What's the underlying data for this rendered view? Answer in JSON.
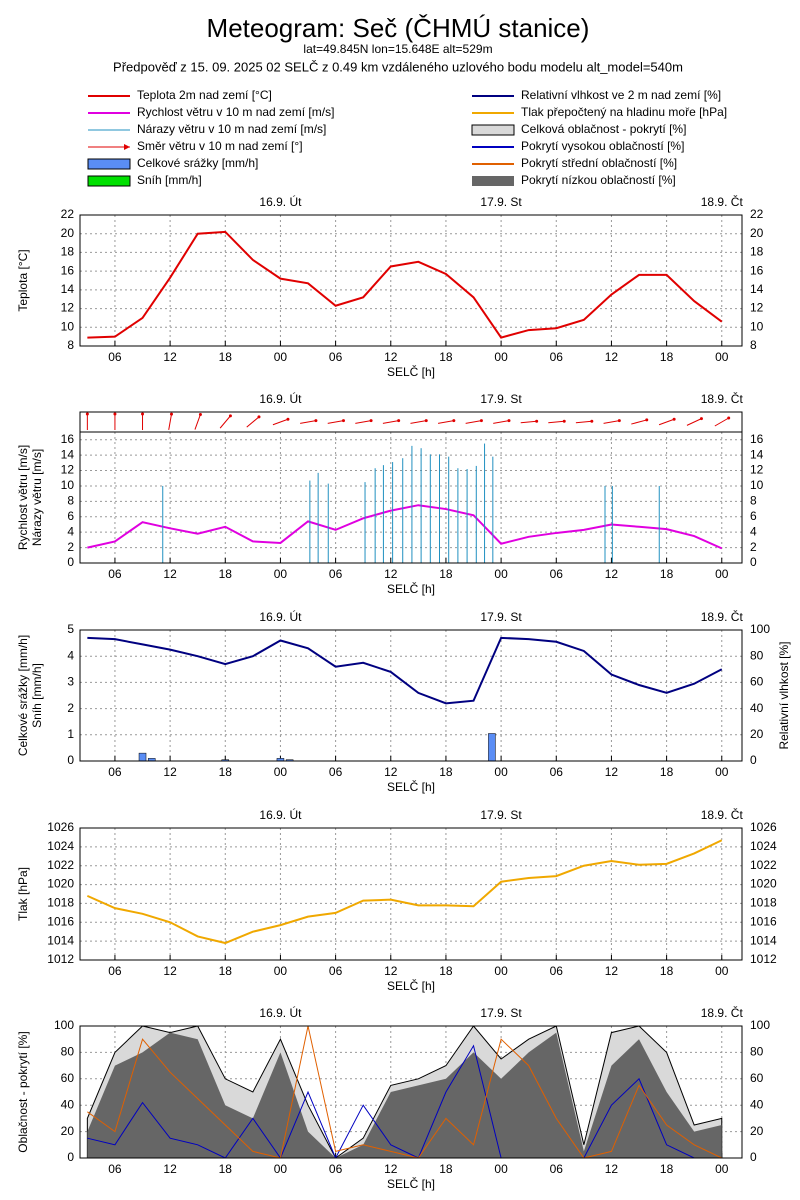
{
  "header": {
    "title": "Meteogram: Seč (ČHMÚ stanice)",
    "coords": "lat=49.845N lon=15.648E alt=529m",
    "forecast": "Předpověď z 15. 09. 2025 02 SELČ z 0.49 km vzdáleného uzlového bodu modelu alt_model=540m"
  },
  "time": {
    "x": [
      3,
      6,
      9,
      12,
      15,
      18,
      21,
      24,
      27,
      30,
      33,
      36,
      39,
      42,
      45,
      48,
      51,
      54,
      57,
      60,
      63,
      66,
      69,
      72
    ],
    "xlim": [
      2.2,
      74.2
    ],
    "xticks": [
      {
        "value": 6,
        "label": "06"
      },
      {
        "value": 12,
        "label": "12"
      },
      {
        "value": 18,
        "label": "18"
      },
      {
        "value": 24,
        "label": "00"
      },
      {
        "value": 30,
        "label": "06"
      },
      {
        "value": 36,
        "label": "12"
      },
      {
        "value": 42,
        "label": "18"
      },
      {
        "value": 48,
        "label": "00"
      },
      {
        "value": 54,
        "label": "06"
      },
      {
        "value": 60,
        "label": "12"
      },
      {
        "value": 66,
        "label": "18"
      },
      {
        "value": 72,
        "label": "00"
      }
    ],
    "days": [
      {
        "value": 24,
        "label": "16.9. Út"
      },
      {
        "value": 48,
        "label": "17.9. St"
      },
      {
        "value": 72,
        "label": "18.9. Čt"
      }
    ],
    "xlabel": "SELČ [h]"
  },
  "chart_data": [
    {
      "type": "line",
      "ylabel": [
        "Teplota [°C]"
      ],
      "ylim": [
        8,
        22
      ],
      "yticks": [
        8,
        10,
        12,
        14,
        16,
        18,
        20,
        22
      ],
      "mirror_yticks": true,
      "grid": true,
      "series": [
        {
          "name": "Teplota 2m nad zemí [°C]",
          "color": "#e00000",
          "style": "line",
          "values": [
            8.9,
            9.0,
            11.0,
            15.3,
            20.0,
            20.2,
            17.2,
            15.2,
            14.7,
            12.3,
            13.2,
            16.5,
            17.0,
            15.7,
            13.2,
            8.9,
            9.7,
            9.9,
            10.8,
            13.5,
            15.6,
            15.6,
            12.8,
            10.6
          ]
        }
      ]
    },
    {
      "type": "line",
      "ylabel": [
        "Rychlost větru [m/s]",
        "Nárazy větru [m/s]"
      ],
      "ylim": [
        0,
        17
      ],
      "yticks": [
        0,
        2,
        4,
        6,
        8,
        10,
        12,
        14,
        16
      ],
      "mirror_yticks": true,
      "grid": true,
      "series": [
        {
          "name": "Rychlost větru v 10 m nad zemí [m/s]",
          "color": "#e000e0",
          "style": "line",
          "values": [
            2.0,
            2.8,
            5.3,
            4.5,
            3.8,
            4.7,
            2.8,
            2.6,
            5.4,
            4.3,
            5.8,
            6.8,
            7.5,
            7.0,
            6.2,
            2.5,
            3.4,
            3.9,
            4.3,
            5.0,
            4.7,
            4.4,
            3.5,
            1.9
          ]
        },
        {
          "name": "Nárazy větru v 10 m nad zemí [m/s]",
          "color": "#2090c0",
          "style": "spikes",
          "x": [
            11.2,
            27.2,
            28.1,
            29.2,
            33.2,
            34.3,
            35.2,
            36.2,
            37.3,
            38.3,
            39.3,
            40.3,
            41.3,
            42.3,
            43.3,
            44.3,
            45.3,
            46.2,
            47.1,
            59.3,
            60.1,
            65.2
          ],
          "values": [
            10,
            10.7,
            11.7,
            10.3,
            10.5,
            12.3,
            12.7,
            13.1,
            13.6,
            15.2,
            14.9,
            14.1,
            14.1,
            13.8,
            12.3,
            12.2,
            12.6,
            15.5,
            13.8,
            10,
            10,
            10
          ]
        },
        {
          "name": "Směr větru v 10 m nad zemí [°]",
          "color": "#e00000",
          "style": "arrows",
          "values": [
            180,
            180,
            180,
            190,
            200,
            220,
            230,
            250,
            260,
            260,
            260,
            260,
            260,
            260,
            260,
            260,
            265,
            265,
            265,
            260,
            255,
            250,
            245,
            240
          ]
        }
      ]
    },
    {
      "type": "line",
      "ylabel": [
        "Celkové srážky [mm/h]",
        "Sníh [mm/h]"
      ],
      "y2label": "Relativní vlhkost [%]",
      "ylim": [
        0,
        5
      ],
      "yticks": [
        0,
        1,
        2,
        3,
        4,
        5
      ],
      "y2lim": [
        0,
        100
      ],
      "y2ticks": [
        0,
        20,
        40,
        60,
        80,
        100
      ],
      "grid": true,
      "series": [
        {
          "name": "Celkové srážky [mm/h]",
          "color": "#5a8df5",
          "style": "bars",
          "x": [
            9,
            10,
            18,
            24,
            25,
            47
          ],
          "values": [
            0.3,
            0.1,
            0.05,
            0.1,
            0.05,
            1.05
          ]
        },
        {
          "name": "Sníh [mm/h]",
          "color": "#00e000",
          "style": "bars",
          "x": [
            9,
            10,
            18,
            24,
            25,
            47
          ],
          "values": [
            0,
            0,
            0,
            0,
            0,
            0
          ]
        },
        {
          "name": "Relativní vlhkost ve 2 m nad zemí [%]",
          "color": "#000080",
          "style": "line",
          "axis": "y2",
          "values": [
            94,
            93,
            89,
            85,
            80,
            74,
            80,
            92,
            86,
            72,
            75,
            68,
            52,
            44,
            46,
            94,
            93,
            91,
            84,
            66,
            58,
            52,
            59,
            70
          ]
        }
      ]
    },
    {
      "type": "line",
      "ylabel": [
        "Tlak [hPa]"
      ],
      "ylim": [
        1012,
        1026
      ],
      "yticks": [
        1012,
        1014,
        1016,
        1018,
        1020,
        1022,
        1024,
        1026
      ],
      "mirror_yticks": true,
      "grid": true,
      "series": [
        {
          "name": "Tlak přepočtený na hladinu moře [hPa]",
          "color": "#f0a800",
          "style": "line",
          "values": [
            1018.8,
            1017.5,
            1016.9,
            1016,
            1014.5,
            1013.8,
            1015,
            1015.7,
            1016.6,
            1017,
            1018.3,
            1018.4,
            1017.8,
            1017.8,
            1017.7,
            1020.3,
            1020.7,
            1020.9,
            1022,
            1022.5,
            1022.1,
            1022.2,
            1023.3,
            1024.7
          ]
        }
      ]
    },
    {
      "type": "line",
      "ylabel": [
        "Oblačnost - pokrytí [%]"
      ],
      "ylim": [
        0,
        100
      ],
      "yticks": [
        0,
        20,
        40,
        60,
        80,
        100
      ],
      "mirror_yticks": true,
      "grid": true,
      "series": [
        {
          "name": "Celková oblačnost - pokrytí [%]",
          "color": "#d9d9d9",
          "style": "area",
          "values": [
            30,
            80,
            100,
            95,
            100,
            60,
            50,
            90,
            40,
            0,
            15,
            55,
            60,
            70,
            100,
            75,
            90,
            100,
            10,
            95,
            100,
            80,
            25,
            30
          ]
        },
        {
          "name": "Pokrytí nízkou oblačností [%]",
          "color": "#666666",
          "style": "area",
          "values": [
            20,
            70,
            80,
            95,
            90,
            40,
            30,
            80,
            20,
            0,
            10,
            50,
            55,
            60,
            80,
            60,
            80,
            95,
            5,
            70,
            90,
            50,
            20,
            25
          ]
        },
        {
          "name": "Pokrytí vysokou oblačností [%]",
          "color": "#0000c0",
          "style": "line",
          "values": [
            15,
            10,
            42,
            15,
            10,
            0,
            30,
            0,
            50,
            0,
            40,
            10,
            0,
            50,
            85,
            0,
            0,
            0,
            0,
            40,
            60,
            10,
            0,
            0
          ]
        },
        {
          "name": "Pokrytí střední oblačností [%]",
          "color": "#e06000",
          "style": "line",
          "values": [
            35,
            20,
            90,
            65,
            45,
            25,
            5,
            0,
            100,
            5,
            10,
            5,
            0,
            30,
            10,
            90,
            70,
            30,
            0,
            5,
            55,
            25,
            10,
            0
          ]
        }
      ]
    }
  ]
}
